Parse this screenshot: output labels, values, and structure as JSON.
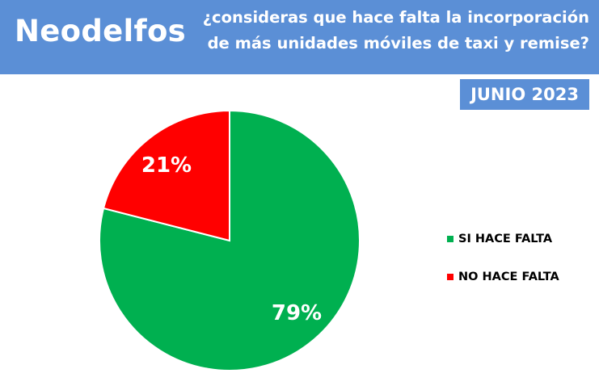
{
  "header": {
    "brand": "Neodelfos",
    "question_line1": "¿consideras que hace falta la incorporación",
    "question_line2": "de más unidades móviles de taxi y remise?"
  },
  "badge": {
    "date": "JUNIO 2023"
  },
  "colors": {
    "header_bg": "#5b8fd6",
    "si": "#00b050",
    "no": "#ff0000"
  },
  "chart_data": {
    "type": "pie",
    "slices": [
      {
        "name": "SI HACE FALTA",
        "value": 79,
        "label": "79%",
        "color": "#00b050"
      },
      {
        "name": "NO HACE FALTA",
        "value": 21,
        "label": "21%",
        "color": "#ff0000"
      }
    ],
    "legend_position": "right"
  }
}
